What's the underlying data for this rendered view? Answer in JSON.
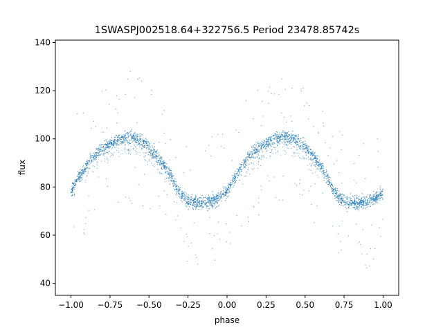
{
  "chart_data": {
    "type": "scatter",
    "title": "1SWASPJ002518.64+322756.5 Period 23478.85742s",
    "xlabel": "phase",
    "ylabel": "flux",
    "xlim": [
      -1.1,
      1.1
    ],
    "ylim": [
      35,
      141
    ],
    "xticks": [
      -1.0,
      -0.75,
      -0.5,
      -0.25,
      0.0,
      0.25,
      0.5,
      0.75,
      1.0
    ],
    "xtick_labels": [
      "−1.00",
      "−0.75",
      "−0.50",
      "−0.25",
      "0.00",
      "0.25",
      "0.50",
      "0.75",
      "1.00"
    ],
    "yticks": [
      40,
      60,
      80,
      100,
      120,
      140
    ],
    "ytick_labels": [
      "40",
      "60",
      "80",
      "100",
      "120",
      "140"
    ],
    "grid": false,
    "marker_color": "#1f77b4",
    "series": [
      {
        "points_description_free": true,
        "profile_phase": [
          0.0,
          0.05,
          0.1,
          0.15,
          0.2,
          0.25,
          0.3,
          0.35,
          0.4,
          0.45,
          0.5,
          0.55,
          0.6,
          0.65,
          0.7,
          0.75,
          0.8,
          0.85,
          0.9,
          0.95,
          1.0
        ],
        "profile_flux": [
          78,
          84,
          89,
          93,
          96,
          98,
          99.5,
          100.5,
          100.5,
          99,
          96.5,
          93,
          88.5,
          83,
          77,
          74,
          73.5,
          73.5,
          74,
          75.5,
          78
        ],
        "scatter_width": 3.5,
        "outlier_range": [
          39,
          136
        ]
      }
    ]
  }
}
